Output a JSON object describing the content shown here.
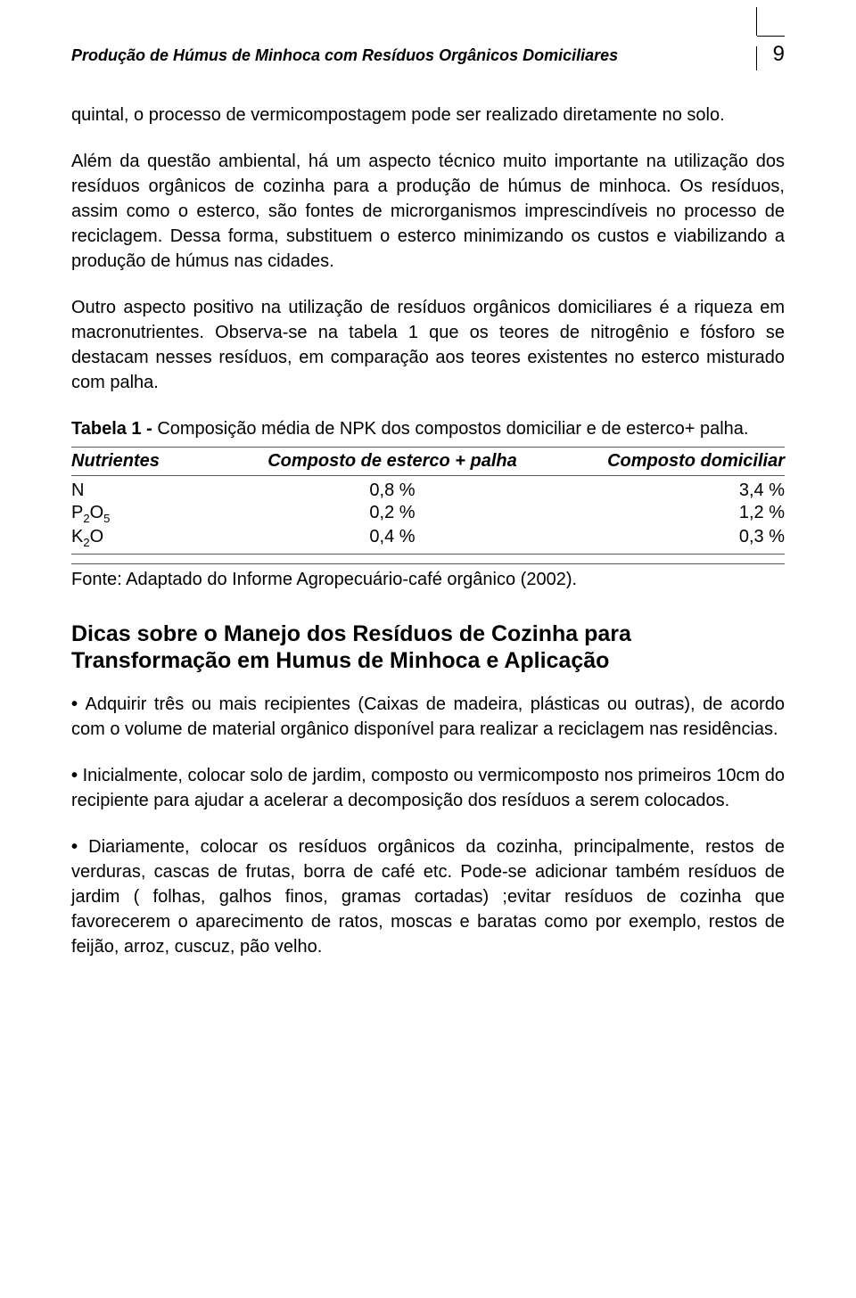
{
  "header": {
    "title": "Produção de Húmus de Minhoca com Resíduos Orgânicos Domiciliares",
    "page": "9"
  },
  "paragraphs": {
    "p1": "quintal, o processo de vermicompostagem pode ser realizado diretamente no solo.",
    "p2": "Além da questão ambiental, há um aspecto técnico muito importante na utilização dos resíduos orgânicos de cozinha para a produção de húmus de minhoca. Os resíduos, assim como o esterco, são fontes de microrganismos imprescindíveis no processo de reciclagem. Dessa forma, substituem o esterco minimizando os custos e viabilizando a produção de húmus nas cidades.",
    "p3": "Outro aspecto positivo na utilização de resíduos orgânicos domiciliares é a riqueza em macronutrientes. Observa-se na tabela 1 que os teores de nitrogênio e fósforo se destacam nesses resíduos, em comparação aos teores existentes no esterco misturado com palha."
  },
  "table": {
    "caption_label": "Tabela 1 - ",
    "caption_text": "Composição média de NPK dos compostos domiciliar e de esterco+ palha.",
    "columns": {
      "c1": "Nutrientes",
      "c2": "Composto de esterco + palha",
      "c3": "Composto domiciliar"
    },
    "rows": [
      {
        "label": "N",
        "sub": "",
        "v1": "0,8 %",
        "v2": "3,4 %"
      },
      {
        "label": "P",
        "sub": "2O5",
        "v1": "0,2 %",
        "v2": "1,2 %"
      },
      {
        "label": "K",
        "sub": "2O",
        "v1": "0,4 %",
        "v2": "0,3 %"
      }
    ],
    "source": "Fonte: Adaptado do Informe Agropecuário-café orgânico (2002)."
  },
  "section2": {
    "title_l1": "Dicas sobre o Manejo dos Resíduos de Cozinha para",
    "title_l2": "Transformação em Humus de Minhoca e Aplicação",
    "b1": "Adquirir três ou mais recipientes (Caixas de madeira, plásticas ou outras), de acordo com o volume de material orgânico disponível para realizar a reciclagem nas residências.",
    "b2": "Inicialmente, colocar solo de jardim, composto ou vermicomposto nos primeiros 10cm do recipiente para ajudar a acelerar a decomposição dos resíduos a serem colocados.",
    "b3": "Diariamente, colocar os resíduos orgânicos da cozinha, principalmente, restos de verduras, cascas de frutas, borra de café etc. Pode-se adicionar também resíduos de jardim ( folhas, galhos finos, gramas cortadas) ;evitar resíduos de cozinha que favorecerem o aparecimento de ratos, moscas e baratas como por exemplo, restos de feijão, arroz, cuscuz, pão velho."
  }
}
